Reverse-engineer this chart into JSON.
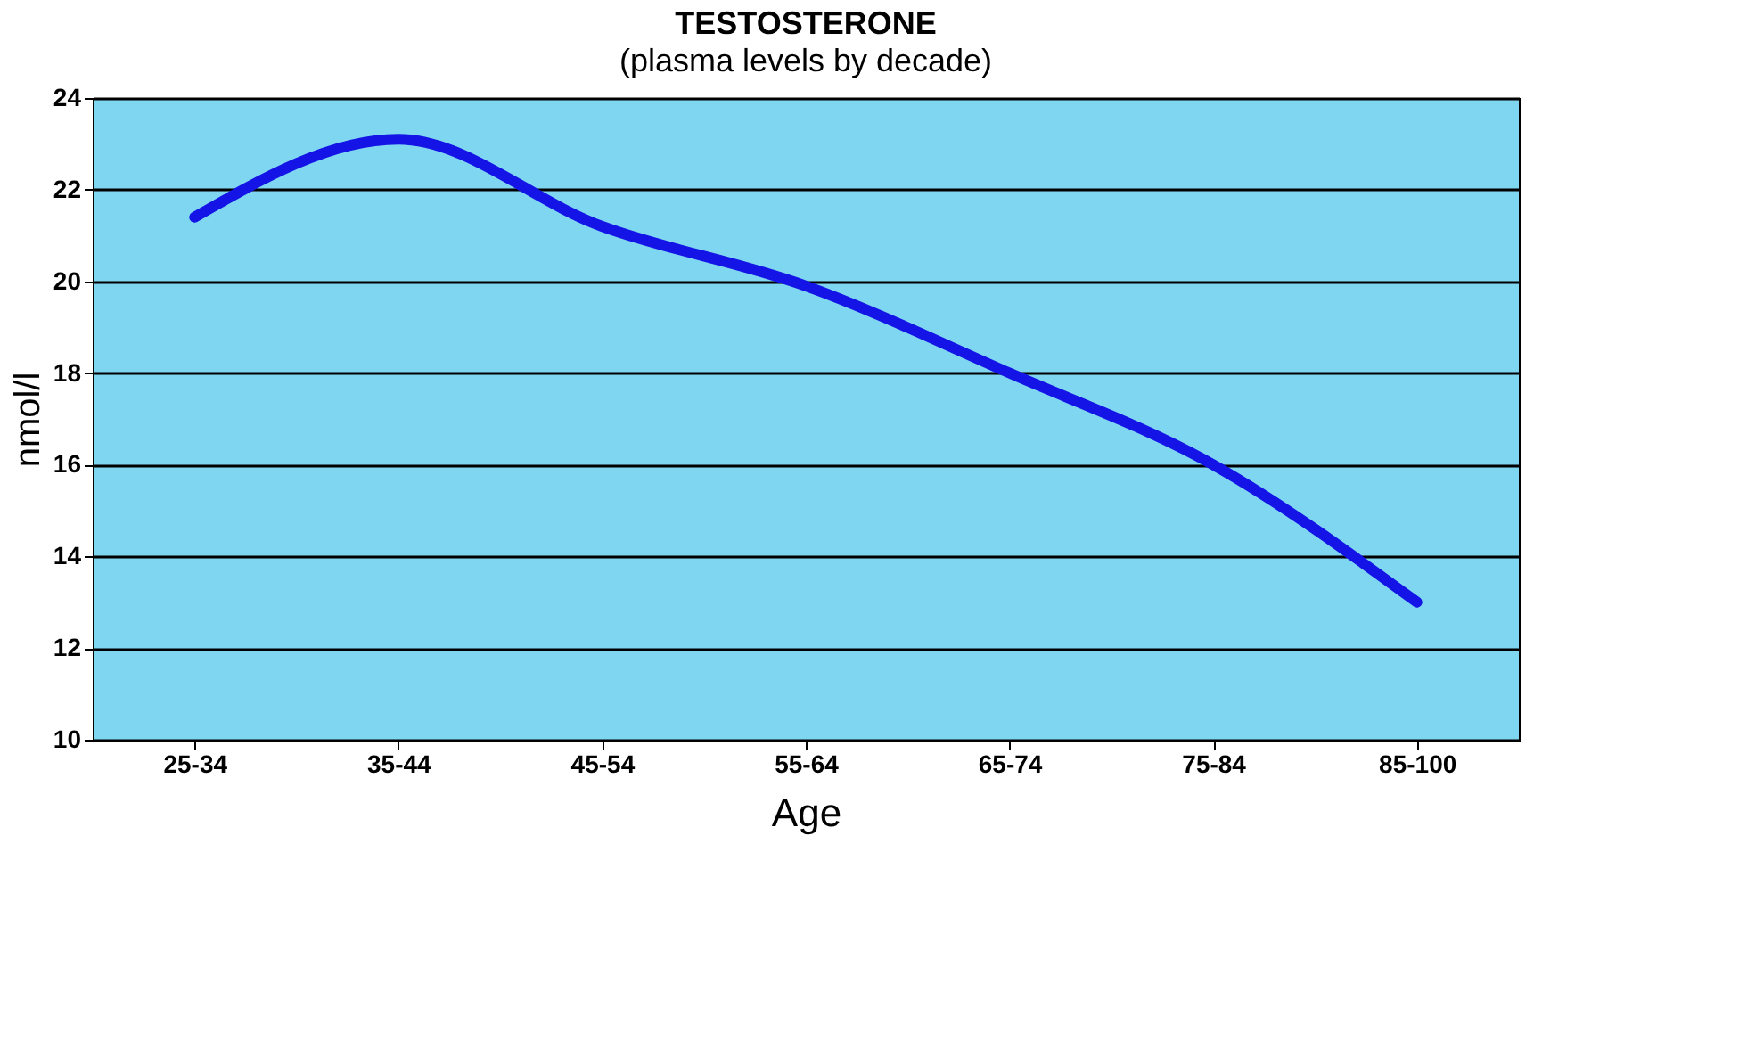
{
  "chart_data": {
    "type": "line",
    "title": "TESTOSTERONE",
    "subtitle": "(plasma levels by decade)",
    "xlabel": "Age",
    "ylabel": "nmol/l",
    "categories": [
      "25-34",
      "35-44",
      "45-54",
      "55-64",
      "65-74",
      "75-84",
      "85-100"
    ],
    "series": [
      {
        "color": "#1414e6",
        "values": [
          21.4,
          23.1,
          21.2,
          19.9,
          18.0,
          16.0,
          13.0
        ]
      }
    ],
    "ylim": [
      10,
      24
    ],
    "yticks": [
      10,
      12,
      14,
      16,
      18,
      20,
      22,
      24
    ],
    "grid": "y",
    "marker": "none",
    "line_style": "solid"
  }
}
